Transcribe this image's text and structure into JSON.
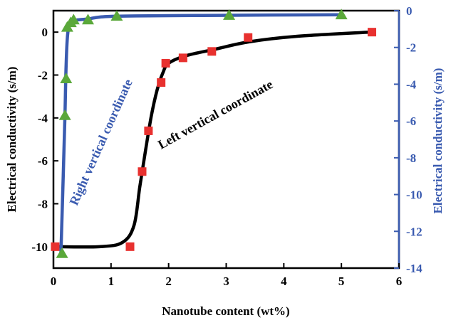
{
  "chart_data": {
    "type": "line",
    "title": "",
    "xlabel": "Nanotube content (wt%)",
    "ylabel_left": "Electrical conductivity (s/m)",
    "ylabel_right": "Electrical conductivity (s/m)",
    "xlim": [
      0,
      6
    ],
    "ylim_left": [
      -11,
      1
    ],
    "ylim_right": [
      -14,
      0
    ],
    "x_ticks": [
      "0",
      "1",
      "2",
      "3",
      "4",
      "5",
      "6"
    ],
    "y_ticks_left": [
      "0",
      "-2",
      "-4",
      "-6",
      "-8",
      "-10"
    ],
    "y_ticks_right": [
      "0",
      "-2",
      "-4",
      "-6",
      "-8",
      "-10",
      "-12",
      "-14"
    ],
    "grid": false,
    "legend": "none",
    "annotations": {
      "left_label": "Left vertical coordinate",
      "right_label": "Right vertical coordinate"
    },
    "colors": {
      "left_curve": "#000000",
      "left_markers": "#e8312f",
      "right_curve": "#3a5bb0",
      "right_markers": "#5aa83a",
      "right_axis_text": "#3a5bb0"
    },
    "series": [
      {
        "axis": "left",
        "marker": "square",
        "points": [
          {
            "x": 0.03,
            "y": -10.0
          },
          {
            "x": 1.33,
            "y": -10.0
          },
          {
            "x": 1.54,
            "y": -6.5
          },
          {
            "x": 1.65,
            "y": -4.6
          },
          {
            "x": 1.87,
            "y": -2.35
          },
          {
            "x": 1.95,
            "y": -1.45
          },
          {
            "x": 2.25,
            "y": -1.2
          },
          {
            "x": 2.75,
            "y": -0.9
          },
          {
            "x": 3.38,
            "y": -0.25
          },
          {
            "x": 5.53,
            "y": 0.0
          }
        ],
        "curve": [
          {
            "x": 0.0,
            "y": -10.0
          },
          {
            "x": 0.8,
            "y": -10.0
          },
          {
            "x": 1.2,
            "y": -9.8
          },
          {
            "x": 1.4,
            "y": -9.0
          },
          {
            "x": 1.5,
            "y": -7.2
          },
          {
            "x": 1.6,
            "y": -5.5
          },
          {
            "x": 1.7,
            "y": -3.9
          },
          {
            "x": 1.8,
            "y": -2.7
          },
          {
            "x": 1.9,
            "y": -1.9
          },
          {
            "x": 2.0,
            "y": -1.45
          },
          {
            "x": 2.3,
            "y": -1.1
          },
          {
            "x": 2.8,
            "y": -0.8
          },
          {
            "x": 3.4,
            "y": -0.45
          },
          {
            "x": 4.2,
            "y": -0.2
          },
          {
            "x": 5.5,
            "y": 0.0
          }
        ]
      },
      {
        "axis": "right",
        "marker": "triangle",
        "points": [
          {
            "x": 0.15,
            "y": -13.2
          },
          {
            "x": 0.2,
            "y": -5.7
          },
          {
            "x": 0.22,
            "y": -3.7
          },
          {
            "x": 0.24,
            "y": -0.9
          },
          {
            "x": 0.3,
            "y": -0.65
          },
          {
            "x": 0.35,
            "y": -0.5
          },
          {
            "x": 0.6,
            "y": -0.5
          },
          {
            "x": 1.1,
            "y": -0.3
          },
          {
            "x": 3.05,
            "y": -0.25
          },
          {
            "x": 5.0,
            "y": -0.22
          }
        ],
        "curve": [
          {
            "x": 0.13,
            "y": -13.2
          },
          {
            "x": 0.17,
            "y": -9.0
          },
          {
            "x": 0.2,
            "y": -5.7
          },
          {
            "x": 0.22,
            "y": -3.0
          },
          {
            "x": 0.25,
            "y": -1.2
          },
          {
            "x": 0.32,
            "y": -0.6
          },
          {
            "x": 0.6,
            "y": -0.45
          },
          {
            "x": 1.1,
            "y": -0.3
          },
          {
            "x": 3.05,
            "y": -0.25
          },
          {
            "x": 5.0,
            "y": -0.22
          }
        ]
      }
    ]
  }
}
